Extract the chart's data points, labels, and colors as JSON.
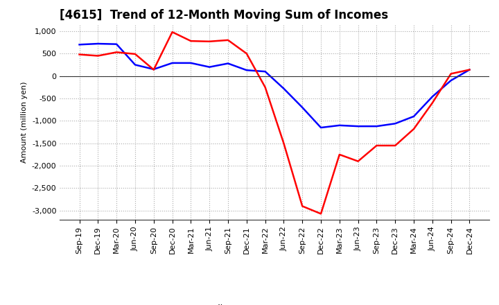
{
  "title": "[4615]  Trend of 12-Month Moving Sum of Incomes",
  "ylabel": "Amount (million yen)",
  "ylim": [
    -3200,
    1150
  ],
  "yticks": [
    1000,
    500,
    0,
    -500,
    -1000,
    -1500,
    -2000,
    -2500,
    -3000
  ],
  "ytick_labels": [
    "1,000",
    "500",
    "0",
    "-500",
    "-1,000",
    "-1,500",
    "-2,000",
    "-2,500",
    "-3,000"
  ],
  "x_labels": [
    "Sep-19",
    "Dec-19",
    "Mar-20",
    "Jun-20",
    "Sep-20",
    "Dec-20",
    "Mar-21",
    "Jun-21",
    "Sep-21",
    "Dec-21",
    "Mar-22",
    "Jun-22",
    "Sep-22",
    "Dec-22",
    "Mar-23",
    "Jun-23",
    "Sep-23",
    "Dec-23",
    "Mar-24",
    "Jun-24",
    "Sep-24",
    "Dec-24"
  ],
  "ordinary_income": [
    700,
    720,
    710,
    250,
    150,
    290,
    290,
    200,
    280,
    130,
    100,
    -280,
    -700,
    -1150,
    -1100,
    -1120,
    -1120,
    -1060,
    -900,
    -460,
    -100,
    140
  ],
  "net_income": [
    480,
    450,
    530,
    490,
    140,
    980,
    780,
    770,
    800,
    500,
    -250,
    -1500,
    -2900,
    -3070,
    -1750,
    -1900,
    -1550,
    -1550,
    -1180,
    -600,
    50,
    140
  ],
  "ordinary_color": "#0000ff",
  "net_color": "#ff0000",
  "background_color": "#ffffff",
  "grid_color": "#aaaaaa",
  "title_fontsize": 12,
  "legend_fontsize": 9,
  "axis_fontsize": 8
}
